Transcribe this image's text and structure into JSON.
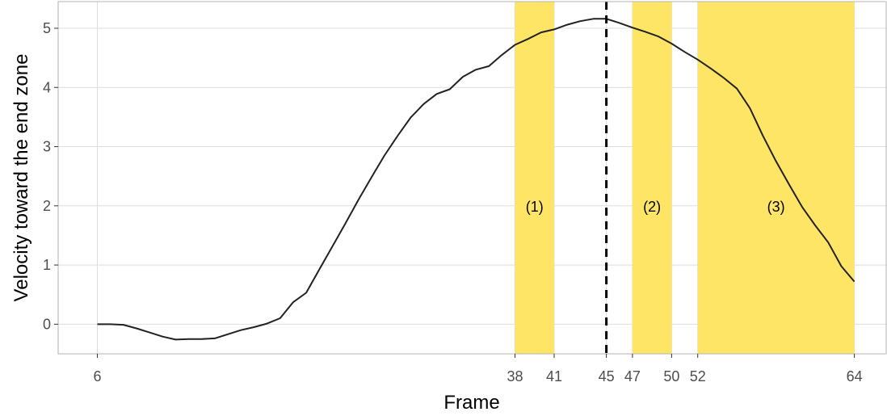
{
  "chart_data": {
    "type": "line",
    "title": "",
    "xlabel": "Frame",
    "ylabel": "Velocity toward the end zone",
    "xlim": [
      3,
      66.5
    ],
    "ylim": [
      -0.5,
      5.45
    ],
    "grid": true,
    "x_ticks": [
      6,
      38,
      41,
      45,
      47,
      50,
      52,
      64
    ],
    "x_tick_labels": [
      "6",
      "38",
      "41",
      "45",
      "47",
      "50",
      "52",
      "64"
    ],
    "y_ticks": [
      0,
      1,
      2,
      3,
      4,
      5
    ],
    "y_tick_labels": [
      "0",
      "1",
      "2",
      "3",
      "4",
      "5"
    ],
    "vline": {
      "x": 45,
      "style": "dashed"
    },
    "bands": [
      {
        "x0": 38,
        "x1": 41,
        "label": "(1)"
      },
      {
        "x0": 47,
        "x1": 50,
        "label": "(2)"
      },
      {
        "x0": 52,
        "x1": 64,
        "label": "(3)"
      }
    ],
    "band_label_y": 2,
    "series": [
      {
        "x": [
          6,
          7,
          8,
          9,
          10,
          11,
          12,
          13,
          14,
          15,
          16,
          17,
          18,
          19,
          20,
          21,
          22,
          23,
          24,
          25,
          26,
          27,
          28,
          29,
          30,
          31,
          32,
          33,
          34,
          35,
          36,
          37,
          38,
          39,
          40,
          41,
          42,
          43,
          44,
          45,
          46,
          47,
          48,
          49,
          50,
          51,
          52,
          53,
          54,
          55,
          56,
          57,
          58,
          59,
          60,
          61,
          62,
          63,
          64
        ],
        "values": [
          0.0,
          0.0,
          -0.01,
          -0.07,
          -0.14,
          -0.21,
          -0.26,
          -0.25,
          -0.25,
          -0.24,
          -0.17,
          -0.1,
          -0.05,
          0.01,
          0.1,
          0.37,
          0.53,
          0.92,
          1.31,
          1.7,
          2.1,
          2.48,
          2.85,
          3.18,
          3.49,
          3.72,
          3.89,
          3.97,
          4.18,
          4.3,
          4.36,
          4.55,
          4.72,
          4.82,
          4.93,
          4.98,
          5.06,
          5.12,
          5.16,
          5.16,
          5.09,
          5.01,
          4.94,
          4.86,
          4.74,
          4.6,
          4.47,
          4.32,
          4.16,
          3.98,
          3.65,
          3.18,
          2.75,
          2.36,
          1.98,
          1.67,
          1.38,
          0.98,
          0.72
        ]
      }
    ]
  },
  "colors": {
    "band": "#ffe566",
    "line": "#222222",
    "grid": "#dedede",
    "axis": "#333333"
  }
}
